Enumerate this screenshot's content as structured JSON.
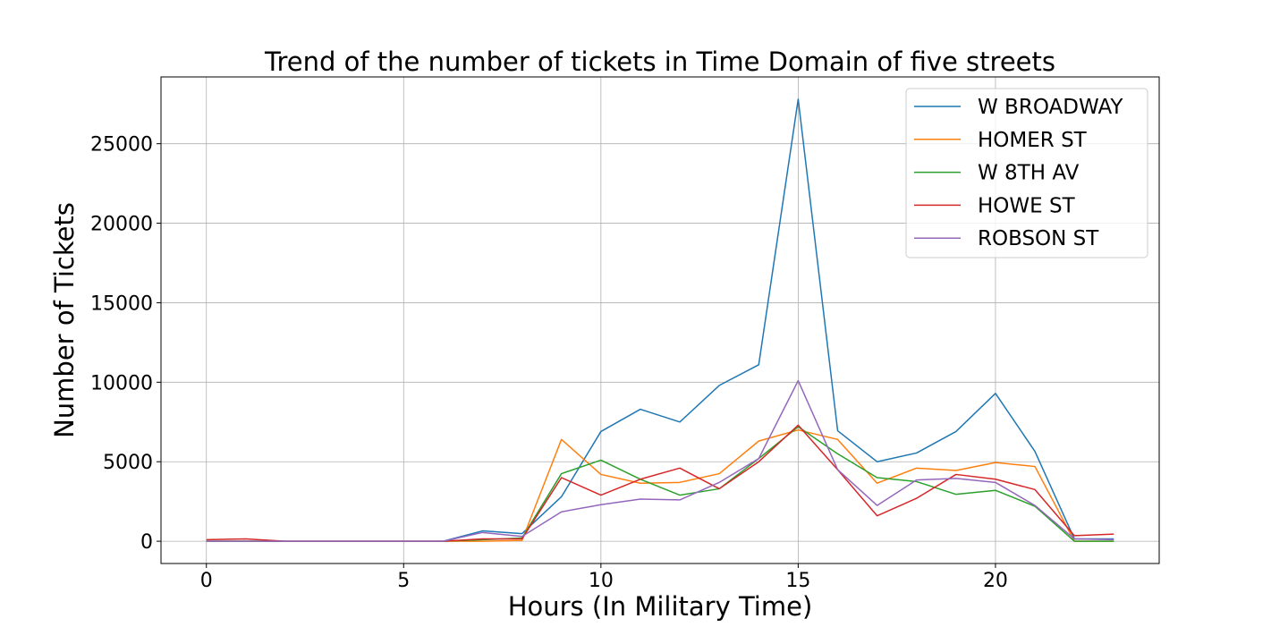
{
  "chart_data": {
    "type": "line",
    "title": "Trend of the number of tickets in Time Domain of five streets",
    "xlabel": "Hours (In Military Time)",
    "ylabel": "Number of Tickets",
    "xlim": [
      -1.15,
      24.15
    ],
    "ylim": [
      -1400,
      29200
    ],
    "x_ticks": [
      0,
      5,
      10,
      15,
      20
    ],
    "y_ticks": [
      0,
      5000,
      10000,
      15000,
      20000,
      25000
    ],
    "grid": true,
    "legend_position": "top-right",
    "x": [
      0,
      1,
      2,
      3,
      4,
      5,
      6,
      7,
      8,
      9,
      10,
      11,
      12,
      13,
      14,
      15,
      16,
      17,
      18,
      19,
      20,
      21,
      22,
      23
    ],
    "series": [
      {
        "name": "W BROADWAY",
        "color": "#1f77b4",
        "values": [
          0,
          0,
          0,
          0,
          0,
          0,
          0,
          650,
          480,
          2800,
          6900,
          8300,
          7500,
          9800,
          11100,
          27800,
          6950,
          5000,
          5550,
          6900,
          9300,
          5650,
          150,
          150
        ]
      },
      {
        "name": "HOMER ST",
        "color": "#ff7f0e",
        "values": [
          0,
          0,
          0,
          0,
          0,
          0,
          0,
          0,
          50,
          6400,
          4200,
          3650,
          3700,
          4250,
          6300,
          7000,
          6400,
          3650,
          4600,
          4450,
          4950,
          4700,
          0,
          0
        ]
      },
      {
        "name": "W 8TH AV",
        "color": "#2ca02c",
        "values": [
          0,
          0,
          0,
          0,
          0,
          0,
          0,
          100,
          200,
          4250,
          5100,
          3900,
          2900,
          3300,
          5200,
          7200,
          5500,
          4000,
          3750,
          2950,
          3200,
          2200,
          0,
          0
        ]
      },
      {
        "name": "HOWE ST",
        "color": "#d62728",
        "values": [
          100,
          150,
          0,
          0,
          0,
          0,
          0,
          150,
          150,
          4000,
          2900,
          3900,
          4600,
          3300,
          5000,
          7300,
          4500,
          1600,
          2700,
          4200,
          3900,
          3250,
          350,
          450
        ]
      },
      {
        "name": "ROBSON ST",
        "color": "#9467bd",
        "values": [
          0,
          0,
          0,
          0,
          0,
          0,
          0,
          550,
          300,
          1850,
          2300,
          2650,
          2600,
          3700,
          5200,
          10100,
          4500,
          2250,
          3850,
          3950,
          3700,
          2250,
          150,
          100
        ]
      }
    ]
  }
}
